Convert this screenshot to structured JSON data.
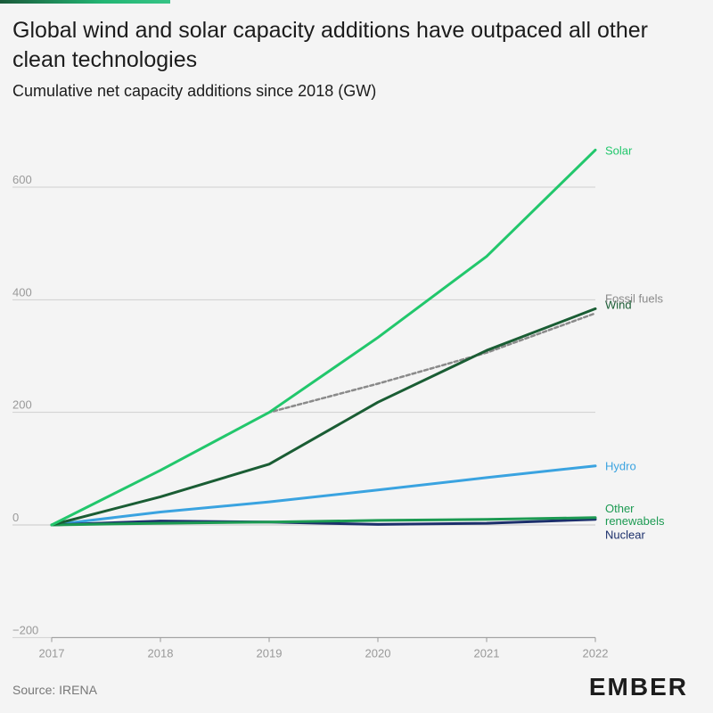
{
  "header": {
    "title": "Global wind and solar capacity additions have outpaced all other clean technologies",
    "subtitle": "Cumulative net capacity additions since 2018 (GW)"
  },
  "footer": {
    "source": "Source: IRENA",
    "logo_text": "EMBER"
  },
  "colors": {
    "background": "#f4f4f4",
    "grid": "#d0d0d0",
    "tick_text": "#999999"
  },
  "chart_data": {
    "type": "line",
    "title": "Global wind and solar capacity additions have outpaced all other clean technologies",
    "subtitle": "Cumulative net capacity additions since 2018 (GW)",
    "xlabel": "",
    "ylabel": "",
    "x": [
      "2017",
      "2018",
      "2019",
      "2020",
      "2021",
      "2022"
    ],
    "xlim": [
      2017,
      2022
    ],
    "ylim": [
      -200,
      700
    ],
    "yticks": [
      -200,
      0,
      200,
      400,
      600
    ],
    "grid": true,
    "legend": "inline-right",
    "series": [
      {
        "name": "Solar",
        "values": [
          0,
          97,
          200,
          333,
          477,
          666
        ],
        "color": "#22c76c",
        "dashed": false
      },
      {
        "name": "Wind",
        "values": [
          0,
          50,
          108,
          218,
          310,
          384
        ],
        "color": "#1a5d34",
        "dashed": false
      },
      {
        "name": "Fossil fuels",
        "values": [
          0,
          97,
          200,
          251,
          306,
          376
        ],
        "color": "#8a8a8a",
        "dashed": true
      },
      {
        "name": "Hydro",
        "values": [
          0,
          23,
          41,
          62,
          84,
          105
        ],
        "color": "#3aa3e0",
        "dashed": false
      },
      {
        "name": "Other renewabels",
        "values": [
          0,
          3,
          5,
          8,
          10,
          13
        ],
        "color": "#1c9a52",
        "dashed": false
      },
      {
        "name": "Nuclear",
        "values": [
          0,
          7,
          5,
          1,
          3,
          10
        ],
        "color": "#1b2f6b",
        "dashed": false
      }
    ],
    "labels": [
      {
        "series": "Solar",
        "lines": [
          "Solar"
        ]
      },
      {
        "series": "Wind",
        "lines": [
          "Wind"
        ]
      },
      {
        "series": "Fossil fuels",
        "lines": [
          "Fossil fuels"
        ]
      },
      {
        "series": "Hydro",
        "lines": [
          "Hydro"
        ]
      },
      {
        "series": "Other renewabels",
        "lines": [
          "Other",
          "renewabels"
        ]
      },
      {
        "series": "Nuclear",
        "lines": [
          "Nuclear"
        ]
      }
    ]
  }
}
